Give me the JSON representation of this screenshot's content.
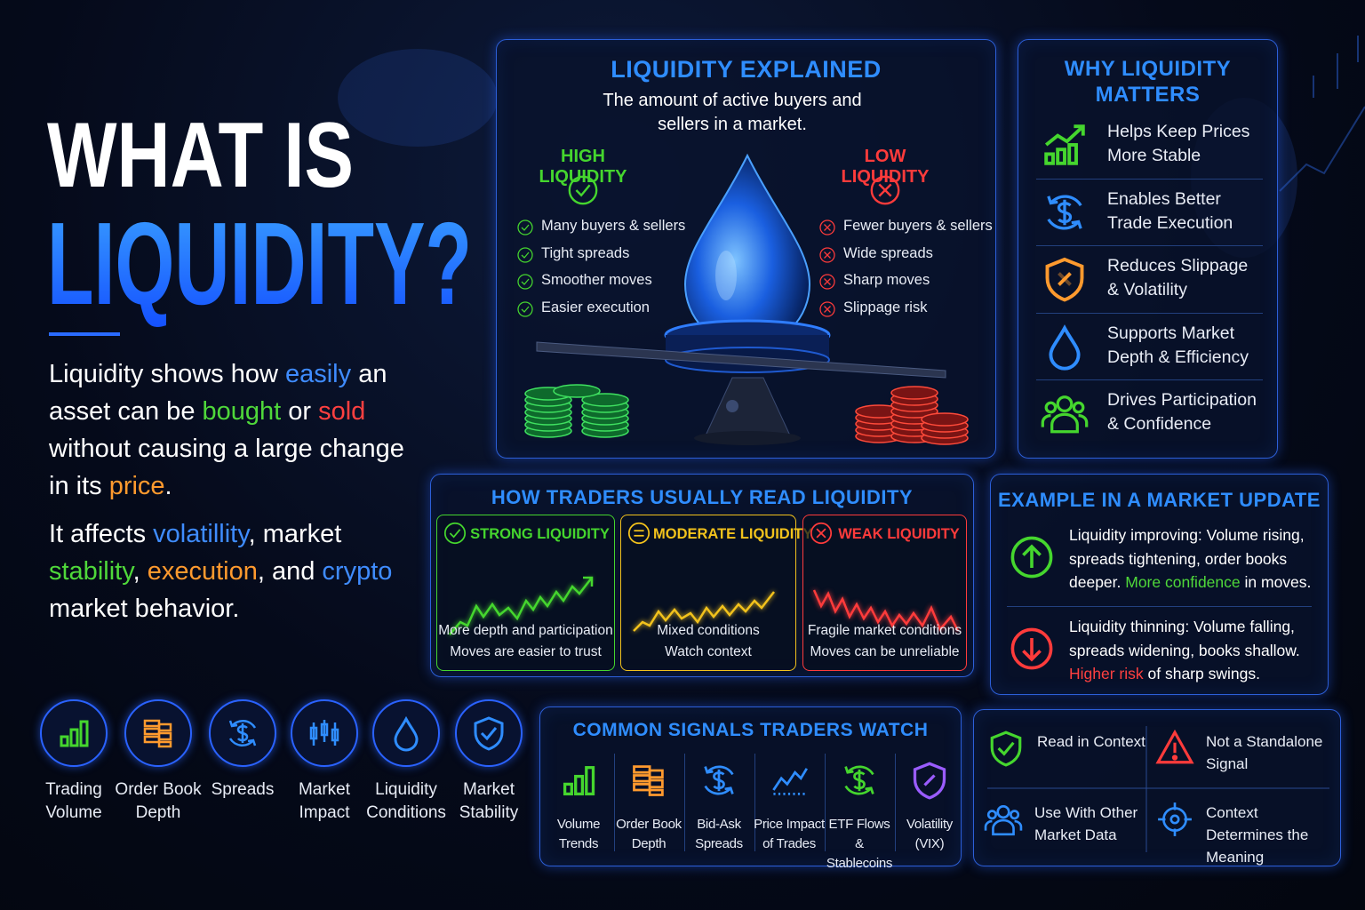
{
  "header": {
    "title_line1": "WHAT IS",
    "title_line2": "LIQUIDITY?"
  },
  "intro": {
    "paragraph1": [
      {
        "text": "Liquidity shows how ",
        "color": "#ffffff"
      },
      {
        "text": "easily",
        "color": "#3f8cff"
      },
      {
        "text": " an asset can be ",
        "color": "#ffffff"
      },
      {
        "text": "bought",
        "color": "#4fd83a"
      },
      {
        "text": " or ",
        "color": "#ffffff"
      },
      {
        "text": "sold",
        "color": "#ff4040"
      },
      {
        "text": " without causing a large change in its ",
        "color": "#ffffff"
      },
      {
        "text": "price",
        "color": "#ff9a2e"
      },
      {
        "text": ".",
        "color": "#ffffff"
      }
    ],
    "paragraph2": [
      {
        "text": "It affects ",
        "color": "#ffffff"
      },
      {
        "text": "volatillity",
        "color": "#3f8cff"
      },
      {
        "text": ", market ",
        "color": "#ffffff"
      },
      {
        "text": "stability",
        "color": "#4fd83a"
      },
      {
        "text": ", ",
        "color": "#ffffff"
      },
      {
        "text": "execution",
        "color": "#ff9a2e"
      },
      {
        "text": ", and ",
        "color": "#ffffff"
      },
      {
        "text": "crypto",
        "color": "#3f8cff"
      },
      {
        "text": " market behavior.",
        "color": "#ffffff"
      }
    ]
  },
  "left_icons": [
    "Trading Volume",
    "Order Book Depth",
    "Spreads",
    "Market Impact",
    "Liquidity Conditions",
    "Market Stability"
  ],
  "explained": {
    "title": "LIQUIDITY EXPLAINED",
    "subtitle": "The amount of active buyers and sellers in a market.",
    "high": {
      "title": "HIGH LIQUIDITY",
      "items": [
        "Many buyers & sellers",
        "Tight spreads",
        "Smoother moves",
        "Easier execution"
      ]
    },
    "low": {
      "title": "LOW LIQUIDITY",
      "items": [
        "Fewer buyers & sellers",
        "Wide spreads",
        "Sharp moves",
        "Slippage risk"
      ]
    }
  },
  "why": {
    "title": "WHY LIQUIDITY MATTERS",
    "items": [
      "Helps Keep Prices More Stable",
      "Enables Better Trade Execution",
      "Reduces Slippage & Volatility",
      "Supports Market Depth & Efficiency",
      "Drives Participation & Confidence"
    ]
  },
  "how": {
    "title": "HOW TRADERS USUALLY READ LIQUIDITY",
    "cards": [
      {
        "title": "STRONG LIQUIDITY",
        "line1": "More depth and participation",
        "line2": "Moves are easier to trust"
      },
      {
        "title": "MODERATE LIQUIDITY",
        "line1": "Mixed conditions",
        "line2": "Watch context"
      },
      {
        "title": "WEAK LIQUIDITY",
        "line1": "Fragile market conditions",
        "line2": "Moves can be unreliable"
      }
    ]
  },
  "example": {
    "title": "EXAMPLE IN A MARKET UPDATE",
    "items": [
      [
        {
          "text": "Liquidity improving: Volume rising, spreads tightening, order books deeper. ",
          "color": "#ffffff"
        },
        {
          "text": "More confidence",
          "color": "#4fd83a"
        },
        {
          "text": " in moves.",
          "color": "#ffffff"
        }
      ],
      [
        {
          "text": "Liquidity thinning: Volume falling, spreads widening, books shallow. ",
          "color": "#ffffff"
        },
        {
          "text": "Higher risk",
          "color": "#ff4040"
        },
        {
          "text": " of sharp swings.",
          "color": "#ffffff"
        }
      ]
    ]
  },
  "signals": {
    "title": "COMMON SIGNALS TRADERS WATCH",
    "items": [
      "Volume Trends",
      "Order Book Depth",
      "Bid-Ask Spreads",
      "Price Impact of Trades",
      "ETF Flows & Stablecoins",
      "Volatility (VIX)"
    ]
  },
  "notes": {
    "items": [
      "Read in Context",
      "Not a Standalone Signal",
      "Use With Other Market Data",
      "Context Determines the Meaning"
    ]
  }
}
